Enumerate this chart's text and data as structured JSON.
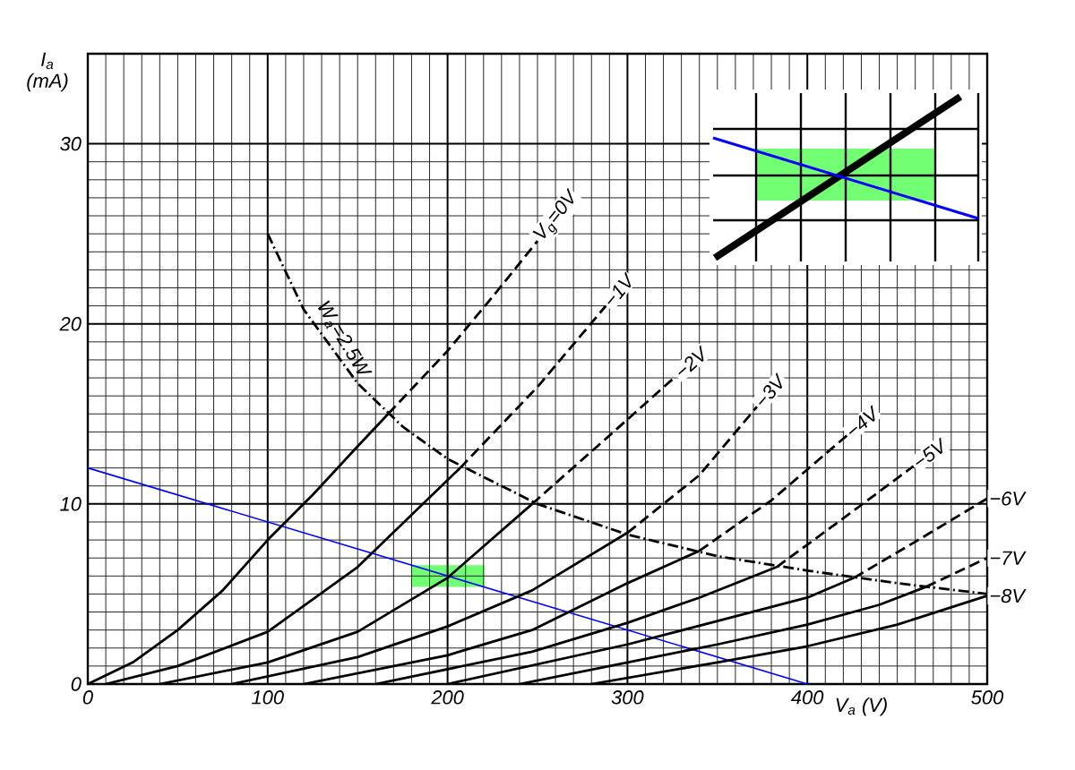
{
  "chart_data": {
    "type": "line",
    "xlabel": "V$_{a}$ (V)",
    "ylabel": "I$_{a}$ (mA)",
    "xlim": [
      0,
      500
    ],
    "ylim": [
      0,
      35
    ],
    "xticks": [
      0,
      100,
      200,
      300,
      400,
      500
    ],
    "yticks": [
      0,
      10,
      20,
      30
    ],
    "grid": true,
    "series": [
      {
        "name": "W$_{a}$=2.5W",
        "color": "#000000",
        "line_style": "dashdot",
        "x": [
          100,
          120,
          150,
          175,
          200,
          250,
          300,
          350,
          400,
          450,
          500
        ],
        "values": [
          25,
          20.8,
          16.7,
          14.3,
          12.5,
          10,
          8.3,
          7.1,
          6.3,
          5.6,
          5
        ]
      },
      {
        "color": "#0000ff",
        "x": [
          0,
          400
        ],
        "values": [
          12,
          0
        ]
      },
      {
        "color": "#000000",
        "line_style": "solid",
        "x": [
          0,
          25,
          50,
          75,
          100,
          125,
          150,
          167
        ],
        "values": [
          0,
          1.2,
          3,
          5.2,
          8,
          10.5,
          13.2,
          15
        ]
      },
      {
        "name": "V$_{g}$=0V",
        "color": "#000000",
        "line_style": "dashed",
        "x": [
          167,
          200,
          225,
          250
        ],
        "values": [
          15,
          18.5,
          21.5,
          24.6
        ]
      },
      {
        "color": "#000000",
        "line_style": "solid",
        "x": [
          10,
          50,
          100,
          150,
          207
        ],
        "values": [
          0,
          1,
          2.9,
          6.5,
          12
        ]
      },
      {
        "name": "−1V",
        "color": "#000000",
        "line_style": "dashed",
        "x": [
          207,
          250,
          288
        ],
        "values": [
          12,
          16.5,
          21
        ]
      },
      {
        "color": "#000000",
        "line_style": "solid",
        "x": [
          40,
          100,
          150,
          200,
          247
        ],
        "values": [
          0,
          1.2,
          2.9,
          5.9,
          10
        ]
      },
      {
        "name": "−2V",
        "color": "#000000",
        "line_style": "dashed",
        "x": [
          247,
          290,
          327
        ],
        "values": [
          10,
          13.8,
          17.1
        ]
      },
      {
        "color": "#000000",
        "line_style": "solid",
        "x": [
          80,
          150,
          200,
          247,
          300
        ],
        "values": [
          0,
          1.5,
          3.2,
          5.2,
          8.4
        ]
      },
      {
        "name": "−3V",
        "color": "#000000",
        "line_style": "dashed",
        "x": [
          300,
          340,
          372
        ],
        "values": [
          8.4,
          11.6,
          15.4
        ]
      },
      {
        "color": "#000000",
        "line_style": "solid",
        "x": [
          120,
          200,
          247,
          300,
          340
        ],
        "values": [
          0,
          1.6,
          3,
          5.6,
          7.4
        ]
      },
      {
        "name": "−4V",
        "color": "#000000",
        "line_style": "dashed",
        "x": [
          340,
          380,
          422
        ],
        "values": [
          7.4,
          10.2,
          13.8
        ]
      },
      {
        "color": "#000000",
        "line_style": "solid",
        "x": [
          160,
          247,
          300,
          340,
          383
        ],
        "values": [
          0,
          1.8,
          3.4,
          4.8,
          6.5
        ]
      },
      {
        "name": "−5V",
        "color": "#000000",
        "line_style": "dashed",
        "x": [
          383,
          420,
          459
        ],
        "values": [
          6.5,
          9.2,
          12.1
        ]
      },
      {
        "color": "#000000",
        "line_style": "solid",
        "x": [
          200,
          300,
          350,
          400,
          426
        ],
        "values": [
          0,
          2.2,
          3.5,
          4.8,
          5.9
        ]
      },
      {
        "name": "−6V",
        "color": "#000000",
        "line_style": "dashed",
        "x": [
          426,
          460,
          500
        ],
        "values": [
          5.9,
          7.9,
          10.3
        ]
      },
      {
        "color": "#000000",
        "line_style": "solid",
        "x": [
          240,
          300,
          350,
          400,
          440,
          466
        ],
        "values": [
          0,
          1.2,
          2.2,
          3.3,
          4.4,
          5.4
        ]
      },
      {
        "name": "−7V",
        "color": "#000000",
        "line_style": "dashed",
        "x": [
          466,
          500
        ],
        "values": [
          5.4,
          7
        ]
      },
      {
        "name": "−8V",
        "color": "#000000",
        "line_style": "solid",
        "x": [
          280,
          350,
          400,
          450,
          500
        ],
        "values": [
          0,
          1.2,
          2.1,
          3.3,
          4.9
        ]
      }
    ]
  }
}
